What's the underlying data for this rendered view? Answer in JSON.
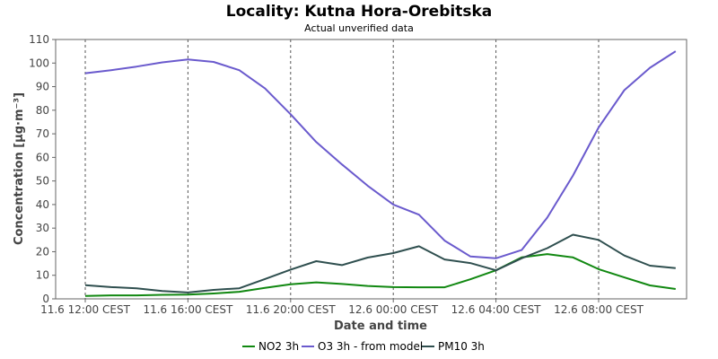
{
  "chart_data": {
    "type": "line",
    "title": "Locality: Kutna Hora-Orebitska",
    "subtitle": "Actual unverified data",
    "xlabel": "Date and time",
    "ylabel": "Concentration [µg·m⁻³]",
    "ylim": [
      0,
      110
    ],
    "yticks": [
      0,
      10,
      20,
      30,
      40,
      50,
      60,
      70,
      80,
      90,
      100,
      110
    ],
    "x": [
      "11.6 12:00",
      "11.6 13:00",
      "11.6 14:00",
      "11.6 15:00",
      "11.6 16:00",
      "11.6 17:00",
      "11.6 18:00",
      "11.6 19:00",
      "11.6 20:00",
      "11.6 21:00",
      "11.6 22:00",
      "11.6 23:00",
      "12.6 00:00",
      "12.6 01:00",
      "12.6 02:00",
      "12.6 03:00",
      "12.6 04:00",
      "12.6 05:00",
      "12.6 06:00",
      "12.6 07:00",
      "12.6 08:00",
      "12.6 09:00",
      "12.6 10:00",
      "12.6 11:00"
    ],
    "xtick_labels": [
      "11.6 12:00 CEST",
      "11.6 16:00 CEST",
      "11.6 20:00 CEST",
      "12.6 00:00 CEST",
      "12.6 04:00 CEST",
      "12.6 08:00 CEST"
    ],
    "xtick_index": [
      0,
      4,
      8,
      12,
      16,
      20
    ],
    "grid": true,
    "legend_position": "bottom",
    "series": [
      {
        "name": "NO2 3h",
        "color": "#118811",
        "values": [
          1.2,
          1.5,
          1.5,
          1.7,
          1.8,
          2.3,
          3.0,
          4.7,
          6.2,
          7.0,
          6.3,
          5.5,
          5.0,
          4.9,
          4.9,
          8.3,
          12.1,
          17.6,
          19.0,
          17.6,
          12.6,
          9.1,
          5.7,
          4.2
        ]
      },
      {
        "name": "O3 3h - from model",
        "color": "#6a5acd",
        "values": [
          95.7,
          97.0,
          98.5,
          100.3,
          101.5,
          100.5,
          97.0,
          89.3,
          78.3,
          66.5,
          57.0,
          48.0,
          40.0,
          35.7,
          24.7,
          18.0,
          17.2,
          20.7,
          34.5,
          52.3,
          72.7,
          88.5,
          98.0,
          105.0
        ]
      },
      {
        "name": "PM10 3h",
        "color": "#2f4f4f",
        "values": [
          5.8,
          5.0,
          4.5,
          3.3,
          2.7,
          3.8,
          4.5,
          8.4,
          12.4,
          16.0,
          14.3,
          17.5,
          19.4,
          22.3,
          16.7,
          15.2,
          12.1,
          17.2,
          21.5,
          27.2,
          25.0,
          18.4,
          14.1,
          13.0
        ]
      }
    ]
  }
}
